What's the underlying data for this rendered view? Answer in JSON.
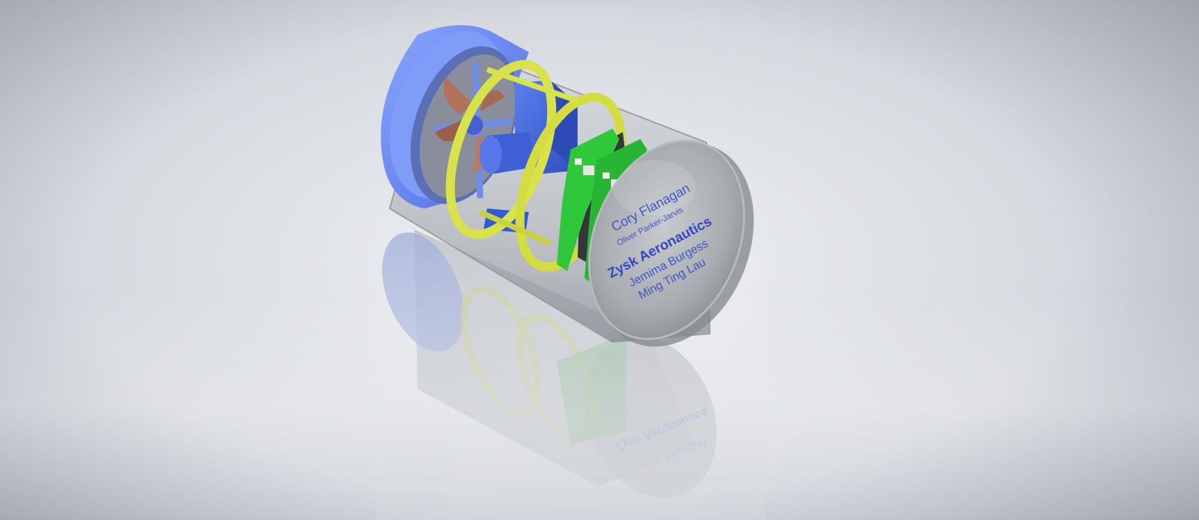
{
  "end_cap_label": {
    "name_1": "Cory Flanagan",
    "name_2": "Oliver Parker-Jarvis",
    "team": "Zysk Aeronautics",
    "name_3": "Jemima Burgess",
    "name_4": "Ming Ting Lau"
  },
  "colors": {
    "background": "#d9dce2",
    "duct_blue": "#6b8bf0",
    "ring_yellow": "#d8e24a",
    "board_green": "#2fc83a",
    "motor_blue": "#3d63d8",
    "propeller_copper": "#b0725a",
    "cap_grey": "#a9adb1",
    "label_text": "#3e55c6"
  },
  "icons": {
    "duct": "ducted-fan-shroud",
    "propeller": "propeller-blades",
    "motor": "motor-block",
    "rings": "yellow-support-rings",
    "boards": "green-circuit-boards",
    "cap": "clear-end-cap"
  }
}
